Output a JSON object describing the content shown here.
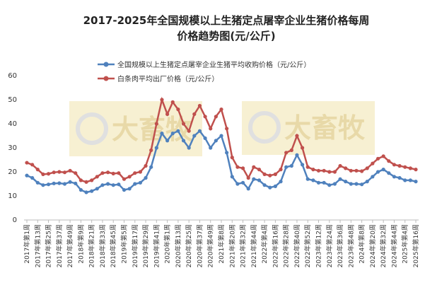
{
  "chart_data": {
    "type": "line",
    "title": [
      "2017-2025年全国规模以上生猪定点屠宰企业生猪价格每周",
      "价格趋势图(元/公斤)"
    ],
    "watermark": [
      "大畜牧",
      "大畜牧"
    ],
    "categories": [
      "2017年第1周",
      null,
      "2017年第13周",
      null,
      "2017年第25周",
      null,
      "2017年第37周",
      null,
      "2017年第49周",
      null,
      "2018年第9周",
      null,
      "2018年第21周",
      null,
      "2018年第33周",
      null,
      "2018年第45周",
      null,
      "2019年第5周",
      null,
      "2019年第17周",
      null,
      "2019年第29周",
      null,
      "2019年第41周",
      null,
      "2020年第1周",
      null,
      "2020年第13周",
      null,
      "2020年第25周",
      null,
      "2020年第37周",
      null,
      "2020年第49周",
      null,
      "2021年第8周",
      null,
      "2021年第20周",
      null,
      "2021年第32周",
      null,
      "2021年第44周",
      null,
      "2022年第4周",
      null,
      "2022年第16周",
      null,
      "2022年第28周",
      null,
      "2022年第40周",
      null,
      "2022年第52周",
      null,
      "2023年第12周",
      null,
      "2023年第24周",
      null,
      "2023年第36周",
      null,
      "2023年第48周",
      null,
      "2024年第8周",
      null,
      "2024年第20周",
      null,
      "2024年第32周",
      null,
      "2024年第44周",
      null,
      "2025年第4周",
      null,
      "2025年第16周"
    ],
    "series": [
      {
        "name": "全国规模以上生猪定点屠宰企业生猪平均收购价格（元/公斤）",
        "color": "#4f81bd",
        "values": [
          18.5,
          17.5,
          15.5,
          14.5,
          14.8,
          15.2,
          15.3,
          15.0,
          15.8,
          15.2,
          12.5,
          11.5,
          12,
          13,
          14.5,
          15,
          14.5,
          14.8,
          12.5,
          13,
          15,
          15.5,
          17.5,
          22,
          30,
          36,
          33,
          36,
          37,
          33,
          30,
          35,
          37,
          34,
          30,
          33,
          35,
          28,
          18,
          15,
          15.5,
          13,
          17,
          16.5,
          14.5,
          13.5,
          14,
          16,
          22,
          22.5,
          27,
          23,
          17,
          16.5,
          15.5,
          15.5,
          14.5,
          15,
          17,
          16,
          15,
          15,
          14.8,
          16,
          18,
          20,
          21,
          19.5,
          18,
          17.5,
          16.5,
          16.5,
          16
        ]
      },
      {
        "name": "白条肉平均出厂价格（元/公斤）",
        "color": "#c0504d",
        "values": [
          23.8,
          23,
          21,
          19,
          19.2,
          19.8,
          20,
          19.8,
          20.5,
          19.5,
          16.5,
          15.8,
          16.5,
          18,
          19.5,
          19.8,
          19.3,
          19.5,
          17,
          18,
          19.5,
          20,
          22.5,
          29,
          40,
          50,
          44,
          49,
          46,
          40,
          37,
          44,
          47.5,
          43,
          38,
          43,
          46,
          38,
          26,
          22,
          21.5,
          17.5,
          22,
          21,
          19,
          18.5,
          19,
          21,
          28,
          29,
          35,
          30,
          22,
          21,
          20.5,
          20.5,
          20,
          20,
          22.5,
          21.5,
          20.5,
          20.5,
          20.3,
          21.5,
          23.5,
          25.5,
          26.5,
          24.5,
          23,
          22.5,
          22,
          21.5,
          21
        ]
      }
    ],
    "ylim": [
      0,
      60
    ],
    "yticks": [
      0,
      10,
      20,
      30,
      40,
      50,
      60
    ],
    "grid": false
  }
}
